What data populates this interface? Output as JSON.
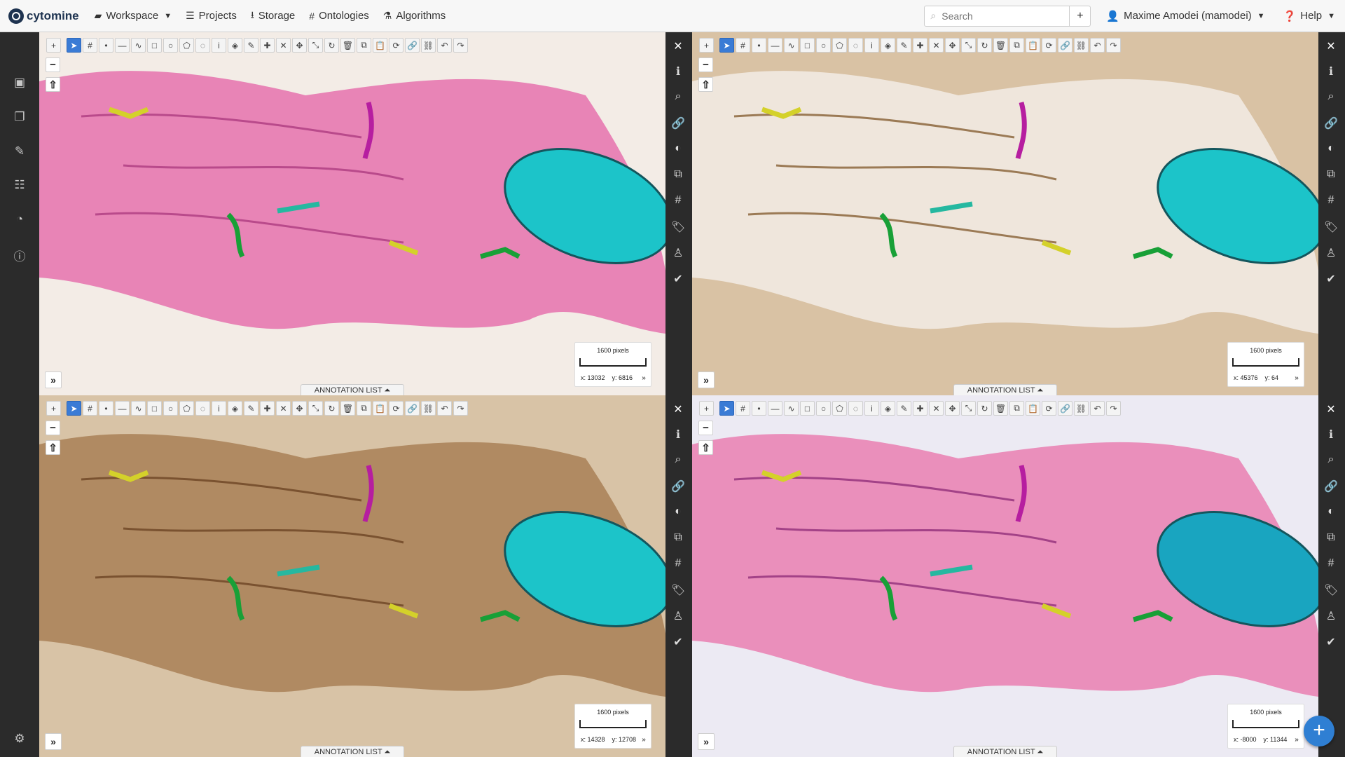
{
  "navbar": {
    "brand": "cytomine",
    "items": [
      {
        "icon": "folder-icon",
        "label": "Workspace",
        "dropdown": true
      },
      {
        "icon": "list-icon",
        "label": "Projects"
      },
      {
        "icon": "download-icon",
        "label": "Storage"
      },
      {
        "icon": "hashtag-icon",
        "label": "Ontologies"
      },
      {
        "icon": "flask-icon",
        "label": "Algorithms"
      }
    ],
    "search_placeholder": "Search",
    "search_add": "+",
    "user": "Maxime Amodei (mamodei)",
    "help": "Help"
  },
  "sidebar": {
    "items": [
      "image-icon",
      "images-icon",
      "edit-icon",
      "tasks-icon",
      "dashboard-icon",
      "info-icon"
    ],
    "bottom": "settings-icon"
  },
  "viewers": [
    {
      "stain": "H&E",
      "scale": "1600 pixels",
      "x": "x: 13032",
      "y": "y: 6816",
      "annotation_list": "ANNOTATION LIST ⏶"
    },
    {
      "stain": "IHC brown",
      "scale": "1600 pixels",
      "x": "x: 45376",
      "y": "y: 64",
      "annotation_list": "ANNOTATION LIST ⏶"
    },
    {
      "stain": "IHC brown dense",
      "scale": "1600 pixels",
      "x": "x: 14328",
      "y": "y: 12708",
      "annotation_list": "ANNOTATION LIST ⏶"
    },
    {
      "stain": "H&E light",
      "scale": "1600 pixels",
      "x": "x: -8000",
      "y": "y: 11344",
      "annotation_list": "ANNOTATION LIST ⏶"
    }
  ],
  "toolbar_icons": [
    "select-icon",
    "hashtag-icon",
    "point-icon",
    "line-icon",
    "freehand-line-icon",
    "rectangle-icon",
    "circle-icon",
    "polygon-icon",
    "freehand-polygon-icon",
    "info-icon",
    "fill-icon",
    "edit-icon",
    "correct-add-icon",
    "correct-remove-icon",
    "move-icon",
    "resize-icon",
    "rotate-icon",
    "delete-icon",
    "copy-icon",
    "paste-icon",
    "repeat-icon",
    "link-icon",
    "unlink-icon",
    "undo-icon",
    "redo-icon"
  ],
  "panel_icons": [
    "close-icon",
    "info-icon",
    "search-icon",
    "link-icon",
    "contrast-icon",
    "copy-icon",
    "hashtag-icon",
    "tag-icon",
    "person-icon",
    "check-icon"
  ],
  "colors": {
    "accent": "#3a7bd5",
    "close": "#d9534f",
    "sidebar_bg": "#2b2b2b",
    "he_bg": "#e884b6",
    "ihc_bg": "#cdb090",
    "roi": "#1cc4c9"
  },
  "zoom_in": "+",
  "zoom_out": "−",
  "expand": "»"
}
